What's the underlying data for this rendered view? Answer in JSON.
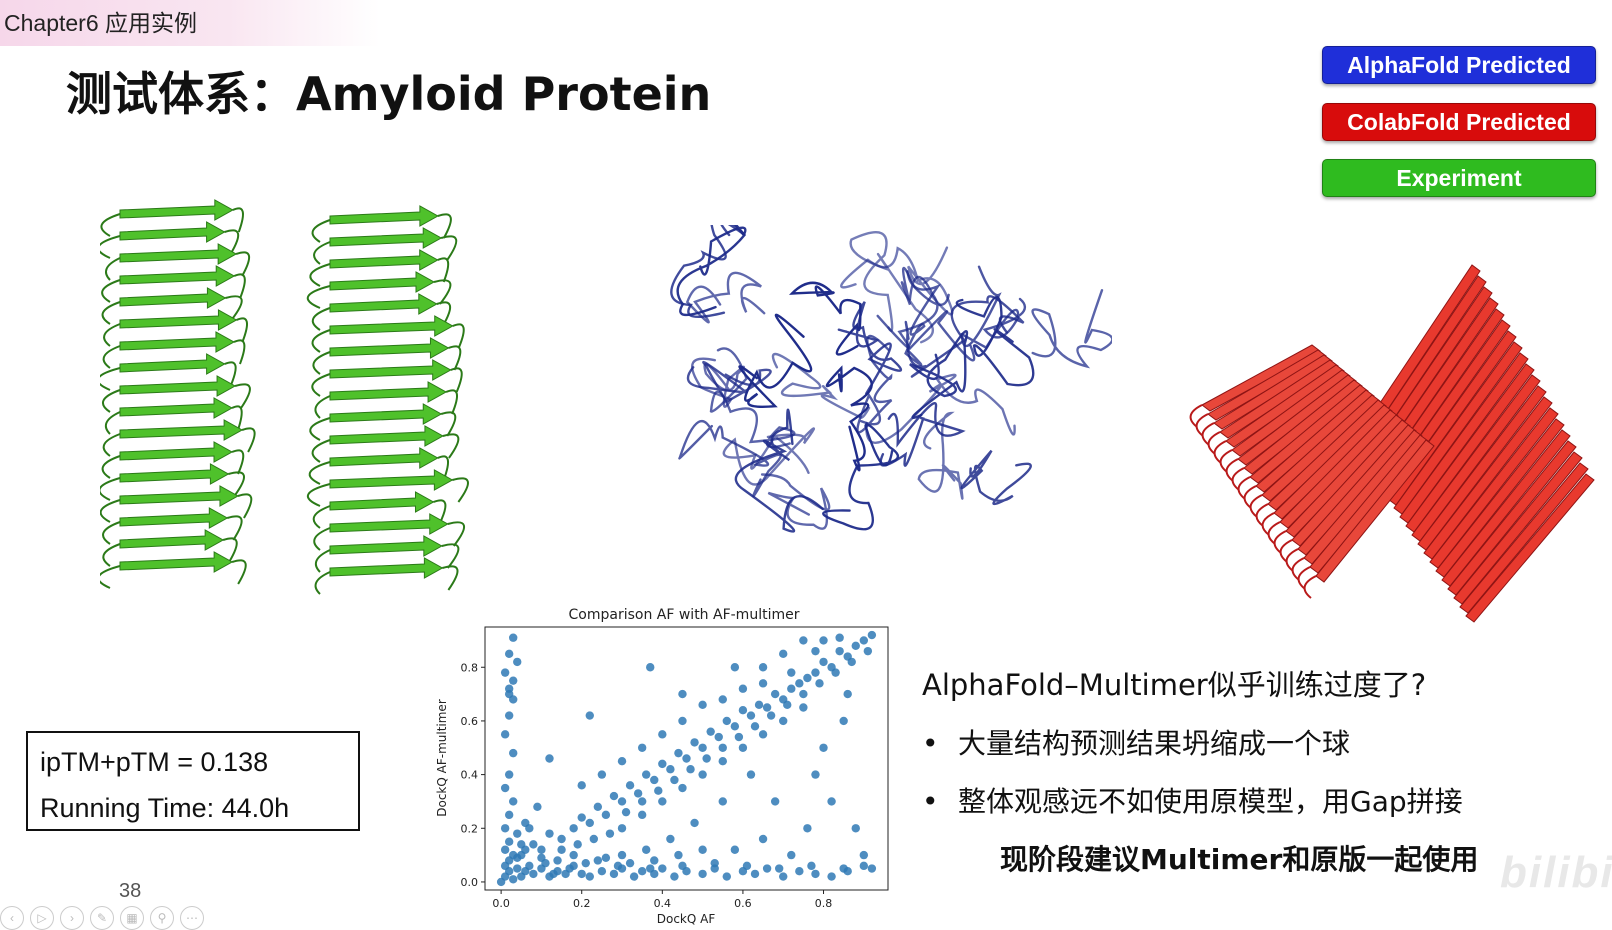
{
  "header": {
    "chapter": "Chapter6 应用实例"
  },
  "title": "测试体系：Amyloid Protein",
  "legend": {
    "alphafold": "AlphaFold Predicted",
    "colabfold": "ColabFold Predicted",
    "experiment": "Experiment"
  },
  "colors": {
    "alphafold": "#1f2fd9",
    "colabfold": "#d80c0c",
    "experiment": "#2fbb1f",
    "scatter": "#2f79b5"
  },
  "metrics": {
    "score": "ipTM+pTM = 0.138",
    "time": "Running Time: 44.0h"
  },
  "slide_number": "38",
  "notes": {
    "question": "AlphaFold–Multimer似乎训练过度了?",
    "bullet_1": "大量结构预测结果坍缩成一个球",
    "bullet_2": "整体观感远不如使用原模型，用Gap拼接",
    "recommendation": "现阶段建议Multimer和原版一起使用",
    "bullet_glyph": "•"
  },
  "toolbar_icons": [
    "prev-icon",
    "play-icon",
    "next-icon",
    "pen-icon",
    "grid-icon",
    "zoom-icon",
    "more-icon"
  ],
  "watermark": "bilibili",
  "chart_data": {
    "type": "scatter",
    "title": "Comparison AF with AF-multimer",
    "xlabel": "DockQ AF",
    "ylabel": "DockQ AF-multimer",
    "xlim": [
      -0.04,
      0.96
    ],
    "ylim": [
      -0.03,
      0.95
    ],
    "xticks": [
      "0.0",
      "0.2",
      "0.4",
      "0.6",
      "0.8"
    ],
    "yticks": [
      "0.0",
      "0.2",
      "0.4",
      "0.6",
      "0.8"
    ],
    "series": [
      {
        "points": [
          [
            0.01,
            0.02
          ],
          [
            0.02,
            0.04
          ],
          [
            0.03,
            0.01
          ],
          [
            0.04,
            0.05
          ],
          [
            0.02,
            0.08
          ],
          [
            0.05,
            0.02
          ],
          [
            0.06,
            0.04
          ],
          [
            0.08,
            0.03
          ],
          [
            0.1,
            0.05
          ],
          [
            0.12,
            0.02
          ],
          [
            0.14,
            0.04
          ],
          [
            0.16,
            0.03
          ],
          [
            0.18,
            0.06
          ],
          [
            0.2,
            0.03
          ],
          [
            0.22,
            0.02
          ],
          [
            0.25,
            0.04
          ],
          [
            0.28,
            0.03
          ],
          [
            0.3,
            0.05
          ],
          [
            0.33,
            0.02
          ],
          [
            0.35,
            0.04
          ],
          [
            0.38,
            0.03
          ],
          [
            0.4,
            0.05
          ],
          [
            0.43,
            0.02
          ],
          [
            0.46,
            0.04
          ],
          [
            0.5,
            0.03
          ],
          [
            0.53,
            0.05
          ],
          [
            0.56,
            0.02
          ],
          [
            0.6,
            0.04
          ],
          [
            0.63,
            0.03
          ],
          [
            0.66,
            0.05
          ],
          [
            0.7,
            0.02
          ],
          [
            0.74,
            0.04
          ],
          [
            0.78,
            0.03
          ],
          [
            0.82,
            0.02
          ],
          [
            0.86,
            0.04
          ],
          [
            0.9,
            0.06
          ],
          [
            0.01,
            0.12
          ],
          [
            0.02,
            0.15
          ],
          [
            0.03,
            0.1
          ],
          [
            0.01,
            0.2
          ],
          [
            0.02,
            0.25
          ],
          [
            0.03,
            0.3
          ],
          [
            0.01,
            0.35
          ],
          [
            0.02,
            0.4
          ],
          [
            0.03,
            0.48
          ],
          [
            0.01,
            0.55
          ],
          [
            0.02,
            0.62
          ],
          [
            0.02,
            0.7
          ],
          [
            0.03,
            0.75
          ],
          [
            0.01,
            0.78
          ],
          [
            0.04,
            0.82
          ],
          [
            0.02,
            0.85
          ],
          [
            0.03,
            0.91
          ],
          [
            0.02,
            0.72
          ],
          [
            0.03,
            0.68
          ],
          [
            0.05,
            0.1
          ],
          [
            0.08,
            0.14
          ],
          [
            0.1,
            0.12
          ],
          [
            0.12,
            0.18
          ],
          [
            0.15,
            0.16
          ],
          [
            0.18,
            0.2
          ],
          [
            0.2,
            0.24
          ],
          [
            0.22,
            0.22
          ],
          [
            0.24,
            0.28
          ],
          [
            0.26,
            0.25
          ],
          [
            0.28,
            0.32
          ],
          [
            0.3,
            0.3
          ],
          [
            0.32,
            0.36
          ],
          [
            0.34,
            0.33
          ],
          [
            0.36,
            0.4
          ],
          [
            0.38,
            0.38
          ],
          [
            0.4,
            0.44
          ],
          [
            0.42,
            0.42
          ],
          [
            0.44,
            0.48
          ],
          [
            0.46,
            0.46
          ],
          [
            0.48,
            0.52
          ],
          [
            0.5,
            0.5
          ],
          [
            0.52,
            0.56
          ],
          [
            0.54,
            0.54
          ],
          [
            0.56,
            0.6
          ],
          [
            0.58,
            0.58
          ],
          [
            0.6,
            0.64
          ],
          [
            0.62,
            0.62
          ],
          [
            0.64,
            0.66
          ],
          [
            0.66,
            0.65
          ],
          [
            0.68,
            0.7
          ],
          [
            0.7,
            0.68
          ],
          [
            0.72,
            0.72
          ],
          [
            0.74,
            0.74
          ],
          [
            0.76,
            0.76
          ],
          [
            0.78,
            0.78
          ],
          [
            0.8,
            0.82
          ],
          [
            0.82,
            0.8
          ],
          [
            0.84,
            0.86
          ],
          [
            0.86,
            0.84
          ],
          [
            0.88,
            0.88
          ],
          [
            0.9,
            0.9
          ],
          [
            0.92,
            0.92
          ],
          [
            0.8,
            0.9
          ],
          [
            0.84,
            0.91
          ],
          [
            0.3,
            0.2
          ],
          [
            0.35,
            0.25
          ],
          [
            0.4,
            0.3
          ],
          [
            0.45,
            0.35
          ],
          [
            0.5,
            0.4
          ],
          [
            0.55,
            0.45
          ],
          [
            0.6,
            0.5
          ],
          [
            0.65,
            0.55
          ],
          [
            0.7,
            0.6
          ],
          [
            0.75,
            0.65
          ],
          [
            0.2,
            0.36
          ],
          [
            0.25,
            0.4
          ],
          [
            0.3,
            0.45
          ],
          [
            0.35,
            0.5
          ],
          [
            0.4,
            0.55
          ],
          [
            0.45,
            0.6
          ],
          [
            0.5,
            0.66
          ],
          [
            0.55,
            0.68
          ],
          [
            0.6,
            0.72
          ],
          [
            0.65,
            0.74
          ],
          [
            0.12,
            0.46
          ],
          [
            0.22,
            0.62
          ],
          [
            0.37,
            0.8
          ],
          [
            0.45,
            0.7
          ],
          [
            0.58,
            0.8
          ],
          [
            0.65,
            0.8
          ],
          [
            0.7,
            0.85
          ],
          [
            0.75,
            0.9
          ],
          [
            0.78,
            0.86
          ],
          [
            0.72,
            0.78
          ],
          [
            0.85,
            0.6
          ],
          [
            0.8,
            0.5
          ],
          [
            0.82,
            0.3
          ],
          [
            0.76,
            0.2
          ],
          [
            0.9,
            0.1
          ],
          [
            0.88,
            0.2
          ],
          [
            0.78,
            0.4
          ],
          [
            0.86,
            0.7
          ],
          [
            0.92,
            0.05
          ],
          [
            0.68,
            0.3
          ],
          [
            0.62,
            0.4
          ],
          [
            0.55,
            0.3
          ],
          [
            0.48,
            0.22
          ],
          [
            0.42,
            0.16
          ],
          [
            0.36,
            0.12
          ],
          [
            0.3,
            0.1
          ],
          [
            0.24,
            0.08
          ],
          [
            0.18,
            0.1
          ],
          [
            0.14,
            0.08
          ],
          [
            0.1,
            0.09
          ],
          [
            0.06,
            0.12
          ],
          [
            0.04,
            0.18
          ],
          [
            0.06,
            0.22
          ],
          [
            0.09,
            0.28
          ],
          [
            0.07,
            0.06
          ],
          [
            0.11,
            0.07
          ],
          [
            0.15,
            0.12
          ],
          [
            0.19,
            0.14
          ],
          [
            0.23,
            0.16
          ],
          [
            0.27,
            0.18
          ],
          [
            0.31,
            0.26
          ],
          [
            0.35,
            0.3
          ],
          [
            0.39,
            0.34
          ],
          [
            0.43,
            0.38
          ],
          [
            0.47,
            0.42
          ],
          [
            0.51,
            0.46
          ],
          [
            0.55,
            0.5
          ],
          [
            0.59,
            0.54
          ],
          [
            0.63,
            0.58
          ],
          [
            0.67,
            0.62
          ],
          [
            0.71,
            0.66
          ],
          [
            0.75,
            0.7
          ],
          [
            0.79,
            0.74
          ],
          [
            0.83,
            0.78
          ],
          [
            0.87,
            0.82
          ],
          [
            0.91,
            0.86
          ],
          [
            0.65,
            0.16
          ],
          [
            0.58,
            0.12
          ],
          [
            0.72,
            0.1
          ],
          [
            0.5,
            0.12
          ],
          [
            0.44,
            0.1
          ],
          [
            0.38,
            0.08
          ],
          [
            0.32,
            0.07
          ],
          [
            0.26,
            0.09
          ],
          [
            0.13,
            0.03
          ],
          [
            0.17,
            0.05
          ],
          [
            0.21,
            0.07
          ],
          [
            0.29,
            0.06
          ],
          [
            0.37,
            0.05
          ],
          [
            0.45,
            0.06
          ],
          [
            0.53,
            0.07
          ],
          [
            0.61,
            0.06
          ],
          [
            0.69,
            0.05
          ],
          [
            0.77,
            0.06
          ],
          [
            0.85,
            0.05
          ],
          [
            0.0,
            0.0
          ],
          [
            0.01,
            0.06
          ],
          [
            0.04,
            0.09
          ],
          [
            0.05,
            0.14
          ],
          [
            0.07,
            0.2
          ]
        ]
      }
    ]
  }
}
